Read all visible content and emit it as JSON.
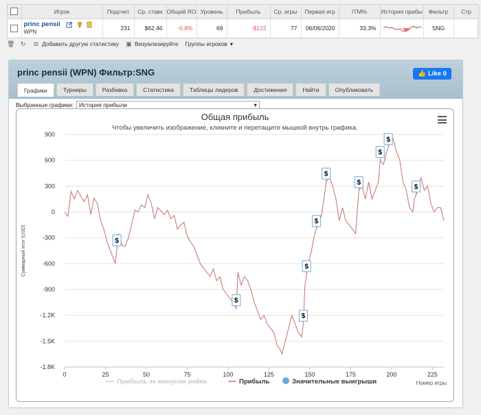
{
  "grid": {
    "headers": [
      "Игрок",
      "Подсчет",
      "Ср. ставк",
      "Общий ROI",
      "Уровень",
      "Прибыль",
      "Ср. игры",
      "Первая игр",
      "ITM%",
      "История прибы",
      "Фильтр",
      "Стр"
    ],
    "row": {
      "player_name": "princ pensii",
      "network": "WPN",
      "count": "231",
      "avg_stake": "$62.46",
      "roi": "-0.8%",
      "level": "69",
      "profit": "-$122",
      "avg_games": "77",
      "first_game": "06/06/2020",
      "itm": "33.3%",
      "filter": "SNG",
      "remove": "x"
    }
  },
  "toolbar": {
    "add_stat": "Добавить другую статистику",
    "visualize": "Визуализируйте",
    "groups": "Группы игроков"
  },
  "panel": {
    "title": "princ pensii (WPN) Фильтр:SNG",
    "like_label": "Like 0",
    "tabs": [
      "Графики",
      "Турниры",
      "Разбивка",
      "Статистика",
      "Таблицы лидеров",
      "Достижения",
      "Найти",
      "Опубликовать"
    ],
    "selected_label": "Выбранные графики:",
    "selected_value": "История прибыли"
  },
  "colors": {
    "line": "#c97a7a",
    "rake_line": "#cccccc",
    "marker": "#6fa8dc",
    "tab_active": "#ffffff",
    "header_bg": "#b3c7d4"
  },
  "chart_data": {
    "type": "line",
    "title": "Общая прибыль",
    "subtitle": "Чтобы увеличить изображение, кликните и перетащите мышкой внутрь графика.",
    "ylabel": "Суммарный итог (USD)",
    "xlabel": "Номер игры",
    "ylim": [
      -1800,
      900
    ],
    "xlim": [
      0,
      232
    ],
    "yticks": [
      "900",
      "600",
      "300",
      "0",
      "-300",
      "-600",
      "-900",
      "-1.2K",
      "-1.5K",
      "-1.8K"
    ],
    "ytick_values": [
      900,
      600,
      300,
      0,
      -300,
      -600,
      -900,
      -1200,
      -1500,
      -1800
    ],
    "xticks": [
      0,
      25,
      50,
      75,
      100,
      125,
      150,
      175,
      200,
      225
    ],
    "legend": [
      "Прибыль за минусом рейка",
      "Прибыль",
      "Значительные выигрыши"
    ],
    "series": [
      {
        "name": "Прибыль",
        "x": [
          0,
          2,
          4,
          6,
          8,
          10,
          12,
          14,
          16,
          18,
          20,
          22,
          24,
          26,
          28,
          30,
          31,
          33,
          35,
          37,
          39,
          41,
          43,
          45,
          47,
          49,
          51,
          53,
          55,
          57,
          59,
          61,
          63,
          65,
          67,
          69,
          71,
          73,
          75,
          77,
          79,
          81,
          83,
          85,
          87,
          89,
          91,
          93,
          95,
          97,
          99,
          101,
          103,
          105,
          106,
          108,
          110,
          112,
          114,
          116,
          118,
          120,
          122,
          124,
          126,
          128,
          130,
          132,
          133,
          135,
          137,
          139,
          141,
          143,
          145,
          146,
          147,
          149,
          151,
          153,
          155,
          157,
          159,
          160,
          162,
          164,
          166,
          168,
          170,
          172,
          174,
          176,
          178,
          180,
          182,
          184,
          186,
          188,
          190,
          192,
          193,
          195,
          197,
          199,
          201,
          203,
          205,
          207,
          209,
          211,
          213,
          214,
          216,
          218,
          220,
          222,
          224,
          226,
          228,
          230,
          232
        ],
        "values": [
          0,
          -50,
          240,
          150,
          250,
          180,
          120,
          200,
          -30,
          160,
          100,
          -100,
          -200,
          -350,
          -450,
          -550,
          -600,
          -250,
          -380,
          -400,
          -300,
          -150,
          20,
          0,
          80,
          50,
          200,
          100,
          -80,
          50,
          10,
          -30,
          20,
          -80,
          -40,
          -200,
          -150,
          -120,
          -280,
          -350,
          -400,
          -500,
          -600,
          -650,
          -700,
          -750,
          -660,
          -800,
          -750,
          -900,
          -950,
          -1000,
          -1050,
          -1120,
          -700,
          -850,
          -750,
          -800,
          -900,
          -1050,
          -1150,
          -1250,
          -1200,
          -1300,
          -1350,
          -1400,
          -1550,
          -1600,
          -1650,
          -1500,
          -1350,
          -1200,
          -1300,
          -1400,
          -1450,
          -1300,
          -850,
          -600,
          -450,
          -250,
          -150,
          -50,
          200,
          350,
          400,
          300,
          150,
          -100,
          50,
          -100,
          -150,
          -200,
          -250,
          250,
          300,
          150,
          350,
          150,
          250,
          350,
          600,
          550,
          700,
          800,
          850,
          700,
          600,
          350,
          250,
          50,
          0,
          150,
          250,
          400,
          250,
          300,
          100,
          0,
          50,
          50,
          -100
        ]
      }
    ],
    "big_wins_x": [
      32,
      105,
      146,
      148,
      154,
      160,
      180,
      193,
      198,
      215
    ]
  }
}
